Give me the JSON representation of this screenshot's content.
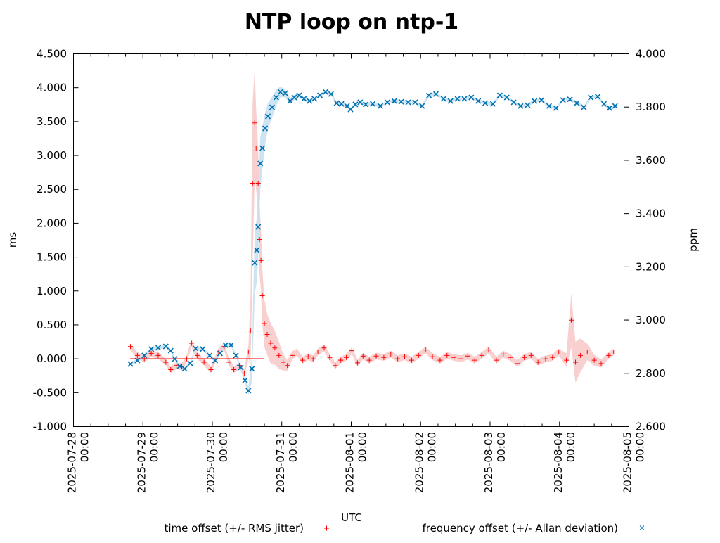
{
  "chart_data": {
    "type": "scatter",
    "title": "NTP loop on ntp-1",
    "xlabel": "UTC",
    "ylabel": "ms",
    "y2label": "ppm",
    "x_unit": "days since 2025-07-28 00:00",
    "xlim": [
      0,
      8
    ],
    "ylim": [
      -1.0,
      4.5
    ],
    "y2lim": [
      2.6,
      4.0
    ],
    "x_ticks": [
      {
        "d": "2025-07-28",
        "t": "00:00"
      },
      {
        "d": "2025-07-29",
        "t": "00:00"
      },
      {
        "d": "2025-07-30",
        "t": "00:00"
      },
      {
        "d": "2025-07-31",
        "t": "00:00"
      },
      {
        "d": "2025-08-01",
        "t": "00:00"
      },
      {
        "d": "2025-08-02",
        "t": "00:00"
      },
      {
        "d": "2025-08-03",
        "t": "00:00"
      },
      {
        "d": "2025-08-04",
        "t": "00:00"
      },
      {
        "d": "2025-08-05",
        "t": "00:00"
      }
    ],
    "y_ticks": [
      "-1.000",
      "-0.500",
      "0.000",
      "0.500",
      "1.000",
      "1.500",
      "2.000",
      "2.500",
      "3.000",
      "3.500",
      "4.000",
      "4.500"
    ],
    "y2_ticks": [
      "2.600",
      "2.800",
      "3.000",
      "3.200",
      "3.400",
      "3.600",
      "3.800",
      "4.000"
    ],
    "grid": false,
    "legend_position": "bottom",
    "series": [
      {
        "name": "time offset (+/- RMS jitter)",
        "axis": "y",
        "color": "#ff0000",
        "band_color": "#f8c8c8",
        "marker": "plus",
        "points": [
          [
            0.82,
            0.18,
            0.05
          ],
          [
            0.92,
            0.05,
            0.05
          ],
          [
            1.02,
            0,
            0.05
          ],
          [
            1.12,
            0.08,
            0.05
          ],
          [
            1.22,
            0.05,
            0.05
          ],
          [
            1.33,
            -0.05,
            0.05
          ],
          [
            1.4,
            -0.16,
            0.05
          ],
          [
            1.48,
            -0.1,
            0.05
          ],
          [
            1.56,
            -0.12,
            0.05
          ],
          [
            1.63,
            0,
            0.05
          ],
          [
            1.7,
            0.23,
            0.06
          ],
          [
            1.78,
            0.05,
            0.05
          ],
          [
            1.88,
            -0.05,
            0.05
          ],
          [
            1.98,
            -0.16,
            0.05
          ],
          [
            2.09,
            0.1,
            0.05
          ],
          [
            2.17,
            0.18,
            0.06
          ],
          [
            2.24,
            -0.05,
            0.05
          ],
          [
            2.31,
            -0.16,
            0.05
          ],
          [
            2.39,
            -0.1,
            0.05
          ],
          [
            2.46,
            -0.21,
            0.06
          ],
          [
            2.52,
            0.1,
            0.1
          ],
          [
            2.55,
            0.41,
            0.5
          ],
          [
            2.58,
            2.59,
            1.2
          ],
          [
            2.61,
            3.48,
            0.8
          ],
          [
            2.63,
            3.11,
            0.6
          ],
          [
            2.66,
            2.59,
            0.5
          ],
          [
            2.68,
            1.76,
            0.5
          ],
          [
            2.7,
            1.45,
            0.45
          ],
          [
            2.72,
            0.93,
            0.4
          ],
          [
            2.75,
            0.52,
            0.35
          ],
          [
            2.79,
            0.36,
            0.3
          ],
          [
            2.84,
            0.23,
            0.3
          ],
          [
            2.9,
            0.16,
            0.25
          ],
          [
            2.96,
            0.05,
            0.2
          ],
          [
            3.02,
            -0.05,
            0.12
          ],
          [
            3.08,
            -0.1,
            0.08
          ],
          [
            3.15,
            0.05,
            0.06
          ],
          [
            3.22,
            0.1,
            0.05
          ],
          [
            3.3,
            -0.02,
            0.05
          ],
          [
            3.38,
            0.03,
            0.05
          ],
          [
            3.45,
            0,
            0.05
          ],
          [
            3.52,
            0.1,
            0.05
          ],
          [
            3.61,
            0.16,
            0.05
          ],
          [
            3.69,
            0.02,
            0.05
          ],
          [
            3.77,
            -0.1,
            0.05
          ],
          [
            3.85,
            -0.02,
            0.05
          ],
          [
            3.93,
            0.02,
            0.05
          ],
          [
            4.01,
            0.12,
            0.05
          ],
          [
            4.09,
            -0.06,
            0.05
          ],
          [
            4.17,
            0.04,
            0.05
          ],
          [
            4.26,
            -0.02,
            0.05
          ],
          [
            4.36,
            0.04,
            0.05
          ],
          [
            4.47,
            0.02,
            0.05
          ],
          [
            4.57,
            0.07,
            0.05
          ],
          [
            4.67,
            0,
            0.05
          ],
          [
            4.77,
            0.03,
            0.05
          ],
          [
            4.87,
            -0.02,
            0.05
          ],
          [
            4.97,
            0.05,
            0.05
          ],
          [
            5.07,
            0.13,
            0.05
          ],
          [
            5.17,
            0.03,
            0.05
          ],
          [
            5.28,
            -0.02,
            0.05
          ],
          [
            5.38,
            0.05,
            0.05
          ],
          [
            5.48,
            0.02,
            0.05
          ],
          [
            5.58,
            0,
            0.05
          ],
          [
            5.68,
            0.04,
            0.05
          ],
          [
            5.78,
            -0.02,
            0.05
          ],
          [
            5.88,
            0.05,
            0.05
          ],
          [
            5.98,
            0.13,
            0.05
          ],
          [
            6.09,
            -0.02,
            0.05
          ],
          [
            6.19,
            0.07,
            0.05
          ],
          [
            6.29,
            0.02,
            0.05
          ],
          [
            6.39,
            -0.07,
            0.05
          ],
          [
            6.49,
            0.02,
            0.05
          ],
          [
            6.59,
            0.05,
            0.05
          ],
          [
            6.69,
            -0.05,
            0.05
          ],
          [
            6.8,
            0,
            0.05
          ],
          [
            6.9,
            0.02,
            0.05
          ],
          [
            6.99,
            0.1,
            0.05
          ],
          [
            7.1,
            -0.02,
            0.1
          ],
          [
            7.17,
            0.57,
            0.4
          ],
          [
            7.23,
            -0.05,
            0.3
          ],
          [
            7.3,
            0.05,
            0.25
          ],
          [
            7.4,
            0.1,
            0.12
          ],
          [
            7.5,
            -0.02,
            0.08
          ],
          [
            7.6,
            -0.07,
            0.06
          ],
          [
            7.71,
            0.05,
            0.05
          ],
          [
            7.78,
            0.1,
            0.05
          ]
        ]
      },
      {
        "name": "frequency offset (+/- Allan deviation)",
        "axis": "y2",
        "color": "#0072b2",
        "band_color": "#c6dff0",
        "marker": "cross",
        "points": [
          [
            0.82,
            2.835,
            0.006
          ],
          [
            0.92,
            2.848,
            0.006
          ],
          [
            1.02,
            2.867,
            0.006
          ],
          [
            1.12,
            2.891,
            0.006
          ],
          [
            1.22,
            2.896,
            0.006
          ],
          [
            1.33,
            2.901,
            0.006
          ],
          [
            1.4,
            2.885,
            0.006
          ],
          [
            1.46,
            2.854,
            0.006
          ],
          [
            1.53,
            2.827,
            0.006
          ],
          [
            1.6,
            2.817,
            0.006
          ],
          [
            1.68,
            2.838,
            0.006
          ],
          [
            1.76,
            2.893,
            0.006
          ],
          [
            1.86,
            2.891,
            0.006
          ],
          [
            1.96,
            2.867,
            0.006
          ],
          [
            2.04,
            2.848,
            0.006
          ],
          [
            2.11,
            2.875,
            0.006
          ],
          [
            2.19,
            2.906,
            0.006
          ],
          [
            2.27,
            2.906,
            0.006
          ],
          [
            2.34,
            2.867,
            0.006
          ],
          [
            2.41,
            2.822,
            0.01
          ],
          [
            2.47,
            2.774,
            0.012
          ],
          [
            2.52,
            2.735,
            0.015
          ],
          [
            2.57,
            2.817,
            0.05
          ],
          [
            2.61,
            3.215,
            0.12
          ],
          [
            2.64,
            3.263,
            0.12
          ],
          [
            2.66,
            3.35,
            0.12
          ],
          [
            2.69,
            3.588,
            0.1
          ],
          [
            2.72,
            3.646,
            0.08
          ],
          [
            2.76,
            3.72,
            0.06
          ],
          [
            2.8,
            3.765,
            0.05
          ],
          [
            2.86,
            3.799,
            0.04
          ],
          [
            2.92,
            3.836,
            0.03
          ],
          [
            2.98,
            3.857,
            0.02
          ],
          [
            3.05,
            3.852,
            0.015
          ],
          [
            3.12,
            3.823,
            0.012
          ],
          [
            3.18,
            3.836,
            0.01
          ],
          [
            3.25,
            3.844,
            0.008
          ],
          [
            3.32,
            3.831,
            0.006
          ],
          [
            3.4,
            3.823,
            0.006
          ],
          [
            3.47,
            3.831,
            0.006
          ],
          [
            3.55,
            3.844,
            0.006
          ],
          [
            3.63,
            3.857,
            0.006
          ],
          [
            3.71,
            3.849,
            0.006
          ],
          [
            3.79,
            3.815,
            0.006
          ],
          [
            3.86,
            3.812,
            0.006
          ],
          [
            3.94,
            3.804,
            0.006
          ],
          [
            3.99,
            3.791,
            0.006
          ],
          [
            4.06,
            3.81,
            0.006
          ],
          [
            4.13,
            3.818,
            0.006
          ],
          [
            4.21,
            3.81,
            0.006
          ],
          [
            4.31,
            3.812,
            0.006
          ],
          [
            4.42,
            3.804,
            0.006
          ],
          [
            4.52,
            3.818,
            0.006
          ],
          [
            4.62,
            3.823,
            0.006
          ],
          [
            4.72,
            3.82,
            0.006
          ],
          [
            4.82,
            3.818,
            0.006
          ],
          [
            4.92,
            3.818,
            0.006
          ],
          [
            5.02,
            3.804,
            0.006
          ],
          [
            5.12,
            3.844,
            0.006
          ],
          [
            5.22,
            3.849,
            0.006
          ],
          [
            5.33,
            3.831,
            0.006
          ],
          [
            5.43,
            3.823,
            0.006
          ],
          [
            5.53,
            3.831,
            0.006
          ],
          [
            5.63,
            3.831,
            0.006
          ],
          [
            5.73,
            3.836,
            0.006
          ],
          [
            5.83,
            3.823,
            0.006
          ],
          [
            5.93,
            3.815,
            0.006
          ],
          [
            6.04,
            3.812,
            0.006
          ],
          [
            6.14,
            3.844,
            0.006
          ],
          [
            6.24,
            3.836,
            0.006
          ],
          [
            6.34,
            3.818,
            0.006
          ],
          [
            6.44,
            3.804,
            0.006
          ],
          [
            6.54,
            3.807,
            0.006
          ],
          [
            6.64,
            3.823,
            0.006
          ],
          [
            6.74,
            3.826,
            0.006
          ],
          [
            6.85,
            3.804,
            0.006
          ],
          [
            6.95,
            3.796,
            0.006
          ],
          [
            7.05,
            3.826,
            0.006
          ],
          [
            7.15,
            3.829,
            0.006
          ],
          [
            7.25,
            3.815,
            0.006
          ],
          [
            7.35,
            3.799,
            0.006
          ],
          [
            7.45,
            3.836,
            0.006
          ],
          [
            7.55,
            3.839,
            0.006
          ],
          [
            7.64,
            3.812,
            0.006
          ],
          [
            7.72,
            3.796,
            0.006
          ],
          [
            7.8,
            3.804,
            0.006
          ]
        ]
      }
    ]
  }
}
